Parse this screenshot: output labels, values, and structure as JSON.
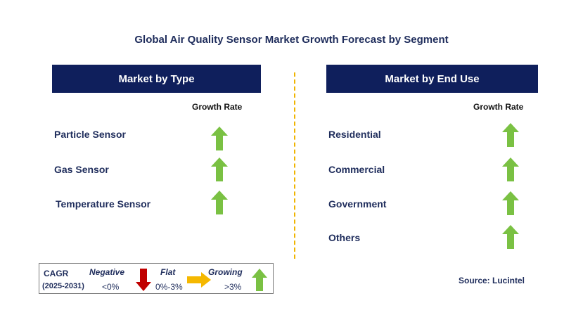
{
  "title": "Global Air Quality Sensor Market Growth Forecast by Segment",
  "left_panel": {
    "header": "Market by Type",
    "growth_label": "Growth Rate",
    "items": [
      {
        "label": "Particle Sensor",
        "trend": "growing"
      },
      {
        "label": "Gas Sensor",
        "trend": "growing"
      },
      {
        "label": "Temperature Sensor",
        "trend": "growing"
      }
    ]
  },
  "right_panel": {
    "header": "Market by End Use",
    "growth_label": "Growth Rate",
    "items": [
      {
        "label": "Residential",
        "trend": "growing"
      },
      {
        "label": "Commercial",
        "trend": "growing"
      },
      {
        "label": "Government",
        "trend": "growing"
      },
      {
        "label": "Others",
        "trend": "growing"
      }
    ]
  },
  "legend": {
    "cagr": "CAGR",
    "period": "(2025-2031)",
    "negative_label": "Negative",
    "negative_range": "<0%",
    "flat_label": "Flat",
    "flat_range": "0%-3%",
    "growing_label": "Growing",
    "growing_range": ">3%"
  },
  "colors": {
    "header_bg": "#0f1f5c",
    "growing": "#7ac143",
    "negative": "#c00000",
    "flat": "#f5b800",
    "divider": "#f0b400"
  },
  "source": "Source: Lucintel"
}
